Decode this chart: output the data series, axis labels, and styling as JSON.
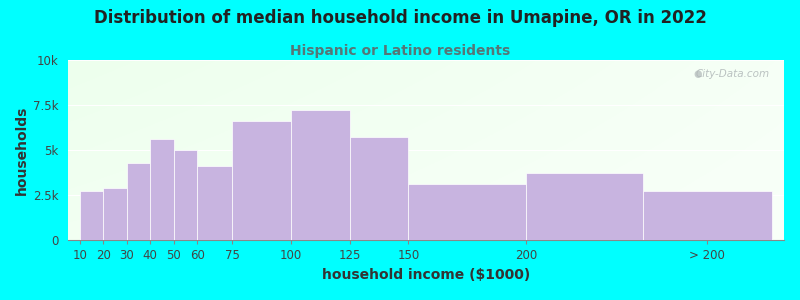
{
  "title": "Distribution of median household income in Umapine, OR in 2022",
  "subtitle": "Hispanic or Latino residents",
  "xlabel": "household income ($1000)",
  "ylabel": "households",
  "background_color": "#00FFFF",
  "bar_color": "#c8b4e0",
  "categories": [
    "10",
    "20",
    "30",
    "40",
    "50",
    "60",
    "75",
    "100",
    "125",
    "150",
    "200",
    "> 200"
  ],
  "positions": [
    10,
    20,
    30,
    40,
    50,
    60,
    75,
    100,
    125,
    150,
    200,
    250
  ],
  "widths": [
    10,
    10,
    10,
    10,
    10,
    15,
    25,
    25,
    25,
    50,
    50,
    55
  ],
  "values": [
    2700,
    2900,
    4300,
    5600,
    5000,
    4100,
    6600,
    7200,
    5700,
    3100,
    3750,
    2700
  ],
  "ylim": [
    0,
    10000
  ],
  "yticks": [
    0,
    2500,
    5000,
    7500,
    10000
  ],
  "ytick_labels": [
    "0",
    "2.5k",
    "5k",
    "7.5k",
    "10k"
  ],
  "xtick_positions": [
    10,
    20,
    30,
    40,
    50,
    60,
    75,
    100,
    125,
    150,
    200,
    277
  ],
  "xtick_labels": [
    "10",
    "20",
    "30",
    "40",
    "50",
    "60",
    "75",
    "100",
    "125",
    "150",
    "200",
    "> 200"
  ],
  "title_fontsize": 12,
  "subtitle_fontsize": 10,
  "axis_label_fontsize": 10,
  "tick_fontsize": 8.5,
  "title_color": "#222222",
  "subtitle_color": "#557777",
  "watermark_text": "City-Data.com",
  "watermark_color": "#b0b8b8"
}
